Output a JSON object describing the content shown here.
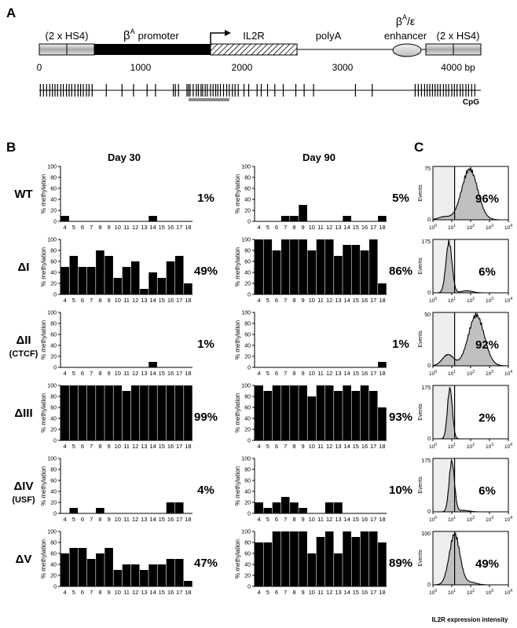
{
  "panelA": {
    "label": "A",
    "elements": {
      "hs4_left": "(2 x HS4)",
      "promoter": "β",
      "promoter_sup": "A",
      "promoter_word": "promoter",
      "il2r": "IL2R",
      "polya": "polyA",
      "enhancer_beta": "β",
      "enhancer_sup": "A",
      "enhancer_eps": "/ε",
      "enhancer_word": "enhancer",
      "hs4_right": "(2 x HS4)"
    },
    "axis_ticks": [
      "0",
      "1000",
      "2000",
      "3000",
      "4000 bp"
    ],
    "cpg_label": "CpG",
    "cpg_positions_bp": [
      10,
      40,
      70,
      100,
      125,
      150,
      175,
      205,
      230,
      260,
      285,
      310,
      340,
      370,
      395,
      420,
      450,
      475,
      505,
      640,
      790,
      900,
      1030,
      1110,
      1280,
      1300,
      1330,
      1410,
      1425,
      1440,
      1470,
      1500,
      1520,
      1545,
      1560,
      1585,
      1605,
      1635,
      1660,
      1685,
      1705,
      1730,
      1760,
      1790,
      1815,
      1845,
      1870,
      1900,
      1955,
      2000,
      2080,
      2120,
      2180,
      2250,
      2330,
      2450,
      2530,
      2620,
      3020,
      3180,
      3590,
      3620,
      3650,
      3680,
      3705,
      3730,
      3755,
      3780,
      3805,
      3830,
      3860,
      3885,
      3910,
      3940,
      3965,
      3990,
      4020,
      4045,
      4075,
      4100,
      4130,
      4160
    ]
  },
  "panelB": {
    "label": "B",
    "col_titles": [
      "Day 30",
      "Day 90"
    ],
    "ylabel": "% methylation",
    "yticks": [
      "0",
      "20",
      "40",
      "60",
      "80",
      "100"
    ],
    "xcats": [
      "4",
      "5",
      "6",
      "7",
      "8",
      "9",
      "10",
      "11",
      "12",
      "13",
      "14",
      "15",
      "16",
      "17",
      "18"
    ]
  },
  "panelC": {
    "label": "C",
    "xlabel": "IL2R expression intensity",
    "ylabel": "Events"
  },
  "rows": [
    {
      "name": "WT",
      "sub": "",
      "pct30": "1%",
      "pct90": "5%",
      "pctC": "96%",
      "events_max": "75",
      "day30": [
        10,
        0,
        0,
        0,
        0,
        0,
        0,
        0,
        0,
        0,
        10,
        0,
        0,
        0,
        0
      ],
      "day90": [
        0,
        0,
        0,
        10,
        10,
        30,
        0,
        0,
        0,
        0,
        10,
        0,
        0,
        0,
        10
      ]
    },
    {
      "name": "ΔI",
      "sub": "",
      "pct30": "49%",
      "pct90": "86%",
      "pctC": "6%",
      "events_max": "175",
      "day30": [
        50,
        70,
        50,
        50,
        80,
        70,
        30,
        50,
        60,
        10,
        40,
        30,
        60,
        70,
        20
      ],
      "day90": [
        100,
        100,
        80,
        100,
        100,
        100,
        80,
        100,
        100,
        70,
        90,
        90,
        80,
        100,
        20
      ]
    },
    {
      "name": "ΔII",
      "sub": "(CTCF)",
      "pct30": "1%",
      "pct90": "1%",
      "pctC": "92%",
      "events_max": "50",
      "day30": [
        0,
        0,
        0,
        0,
        0,
        0,
        0,
        0,
        0,
        0,
        10,
        0,
        0,
        0,
        0
      ],
      "day90": [
        0,
        0,
        0,
        0,
        0,
        0,
        0,
        0,
        0,
        0,
        0,
        0,
        0,
        0,
        10
      ]
    },
    {
      "name": "ΔIII",
      "sub": "",
      "pct30": "99%",
      "pct90": "93%",
      "pctC": "2%",
      "events_max": "175",
      "day30": [
        100,
        100,
        100,
        100,
        100,
        100,
        100,
        90,
        100,
        100,
        100,
        100,
        100,
        100,
        100
      ],
      "day90": [
        100,
        90,
        100,
        100,
        100,
        100,
        80,
        100,
        100,
        90,
        100,
        90,
        100,
        90,
        60
      ]
    },
    {
      "name": "ΔIV",
      "sub": "(USF)",
      "pct30": "4%",
      "pct90": "10%",
      "pctC": "6%",
      "events_max": "175",
      "day30": [
        0,
        10,
        0,
        0,
        10,
        0,
        0,
        0,
        0,
        0,
        0,
        0,
        20,
        20,
        0
      ],
      "day90": [
        20,
        10,
        20,
        30,
        20,
        10,
        0,
        0,
        20,
        20,
        0,
        0,
        0,
        0,
        0
      ]
    },
    {
      "name": "ΔV",
      "sub": "",
      "pct30": "47%",
      "pct90": "89%",
      "pctC": "49%",
      "events_max": "100",
      "day30": [
        60,
        70,
        70,
        50,
        60,
        70,
        30,
        40,
        40,
        30,
        40,
        40,
        50,
        50,
        10
      ],
      "day90": [
        80,
        80,
        100,
        100,
        100,
        100,
        60,
        90,
        100,
        60,
        100,
        90,
        100,
        100,
        80
      ]
    }
  ],
  "histograms": [
    {
      "peak_log": 1.95,
      "width": 0.42,
      "shoulder_log": 0.6,
      "shoulder_frac": 0.06
    },
    {
      "peak_log": 0.85,
      "width": 0.16,
      "shoulder_log": 1.8,
      "shoulder_frac": 0.04
    },
    {
      "peak_log": 2.3,
      "width": 0.42,
      "shoulder_log": 0.8,
      "shoulder_frac": 0.22
    },
    {
      "peak_log": 0.9,
      "width": 0.13,
      "shoulder_log": 1.6,
      "shoulder_frac": 0.0
    },
    {
      "peak_log": 1.0,
      "width": 0.14,
      "shoulder_log": 1.6,
      "shoulder_frac": 0.03
    },
    {
      "peak_log": 1.15,
      "width": 0.28,
      "shoulder_log": 2.0,
      "shoulder_frac": 0.05
    }
  ],
  "chart_data": [
    {
      "type": "bar",
      "panel": "B",
      "title": "Day 30",
      "ylabel": "% methylation",
      "ylim": [
        0,
        100
      ],
      "categories": [
        "4",
        "5",
        "6",
        "7",
        "8",
        "9",
        "10",
        "11",
        "12",
        "13",
        "14",
        "15",
        "16",
        "17",
        "18"
      ],
      "series": [
        {
          "name": "WT",
          "values": [
            10,
            0,
            0,
            0,
            0,
            0,
            0,
            0,
            0,
            0,
            10,
            0,
            0,
            0,
            0
          ]
        },
        {
          "name": "ΔI",
          "values": [
            50,
            70,
            50,
            50,
            80,
            70,
            30,
            50,
            60,
            10,
            40,
            30,
            60,
            70,
            20
          ]
        },
        {
          "name": "ΔII",
          "values": [
            0,
            0,
            0,
            0,
            0,
            0,
            0,
            0,
            0,
            0,
            10,
            0,
            0,
            0,
            0
          ]
        },
        {
          "name": "ΔIII",
          "values": [
            100,
            100,
            100,
            100,
            100,
            100,
            100,
            90,
            100,
            100,
            100,
            100,
            100,
            100,
            100
          ]
        },
        {
          "name": "ΔIV",
          "values": [
            0,
            10,
            0,
            0,
            10,
            0,
            0,
            0,
            0,
            0,
            0,
            0,
            20,
            20,
            0
          ]
        },
        {
          "name": "ΔV",
          "values": [
            60,
            70,
            70,
            50,
            60,
            70,
            30,
            40,
            40,
            30,
            40,
            40,
            50,
            50,
            10
          ]
        }
      ]
    },
    {
      "type": "bar",
      "panel": "B",
      "title": "Day 90",
      "ylabel": "% methylation",
      "ylim": [
        0,
        100
      ],
      "categories": [
        "4",
        "5",
        "6",
        "7",
        "8",
        "9",
        "10",
        "11",
        "12",
        "13",
        "14",
        "15",
        "16",
        "17",
        "18"
      ],
      "series": [
        {
          "name": "WT",
          "values": [
            0,
            0,
            0,
            10,
            10,
            30,
            0,
            0,
            0,
            0,
            10,
            0,
            0,
            0,
            10
          ]
        },
        {
          "name": "ΔI",
          "values": [
            100,
            100,
            80,
            100,
            100,
            100,
            80,
            100,
            100,
            70,
            90,
            90,
            80,
            100,
            20
          ]
        },
        {
          "name": "ΔII",
          "values": [
            0,
            0,
            0,
            0,
            0,
            0,
            0,
            0,
            0,
            0,
            0,
            0,
            0,
            0,
            10
          ]
        },
        {
          "name": "ΔIII",
          "values": [
            100,
            90,
            100,
            100,
            100,
            100,
            80,
            100,
            100,
            90,
            100,
            90,
            100,
            90,
            60
          ]
        },
        {
          "name": "ΔIV",
          "values": [
            20,
            10,
            20,
            30,
            20,
            10,
            0,
            0,
            20,
            20,
            0,
            0,
            0,
            0,
            0
          ]
        },
        {
          "name": "ΔV",
          "values": [
            80,
            80,
            100,
            100,
            100,
            100,
            60,
            90,
            100,
            60,
            100,
            90,
            100,
            100,
            80
          ]
        }
      ]
    },
    {
      "type": "area",
      "panel": "C",
      "xlabel": "IL2R expression intensity",
      "ylabel": "Events",
      "xscale": "log",
      "xlim": [
        1,
        10000
      ],
      "xticks": [
        "10^0",
        "10^1",
        "10^2",
        "10^3",
        "10^4"
      ],
      "series": [
        {
          "name": "WT",
          "ymax": 75,
          "positive_pct": 96
        },
        {
          "name": "ΔI",
          "ymax": 175,
          "positive_pct": 6
        },
        {
          "name": "ΔII",
          "ymax": 50,
          "positive_pct": 92
        },
        {
          "name": "ΔIII",
          "ymax": 175,
          "positive_pct": 2
        },
        {
          "name": "ΔIV",
          "ymax": 175,
          "positive_pct": 6
        },
        {
          "name": "ΔV",
          "ymax": 100,
          "positive_pct": 49
        }
      ]
    }
  ],
  "colors": {
    "bar": "#000000",
    "hist_fill": "#c0c0c0",
    "neg_region": "#eeeeee",
    "promoter": "#000000",
    "cpg_region": "#888888"
  }
}
